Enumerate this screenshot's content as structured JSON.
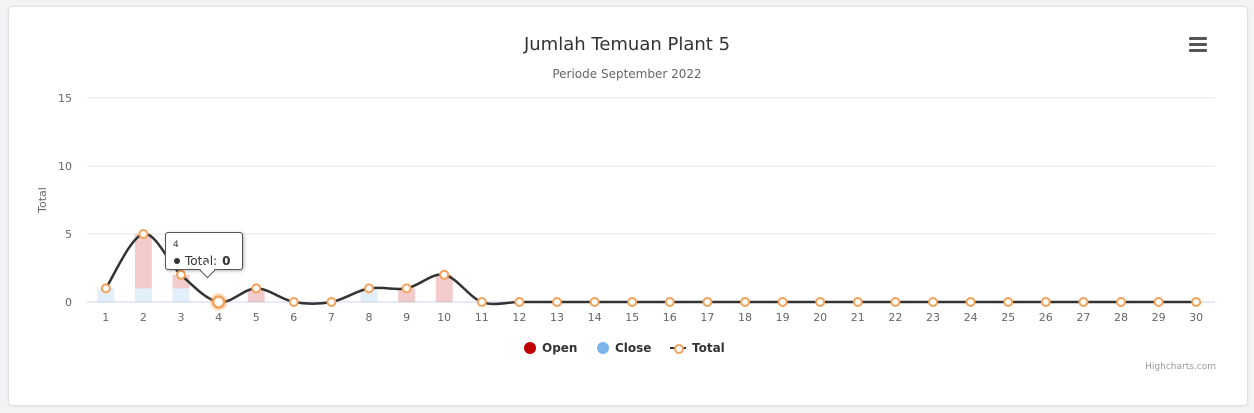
{
  "chart_data": {
    "type": "bar",
    "title": "Jumlah Temuan Plant 5",
    "subtitle": "Periode September 2022",
    "ylabel": "Total",
    "ylim": [
      0,
      15
    ],
    "yticks": [
      0,
      5,
      10,
      15
    ],
    "categories": [
      "1",
      "2",
      "3",
      "4",
      "5",
      "6",
      "7",
      "8",
      "9",
      "10",
      "11",
      "12",
      "13",
      "14",
      "15",
      "16",
      "17",
      "18",
      "19",
      "20",
      "21",
      "22",
      "23",
      "24",
      "25",
      "26",
      "27",
      "28",
      "29",
      "30"
    ],
    "series": [
      {
        "name": "Open",
        "type": "column",
        "color": "#c00000",
        "values": [
          0,
          4,
          1,
          0,
          1,
          0,
          0,
          0,
          1,
          2,
          0,
          0,
          0,
          0,
          0,
          0,
          0,
          0,
          0,
          0,
          0,
          0,
          0,
          0,
          0,
          0,
          0,
          0,
          0,
          0
        ]
      },
      {
        "name": "Close",
        "type": "column",
        "color": "#7cb5ec",
        "values": [
          1,
          1,
          1,
          0,
          0,
          0,
          0,
          1,
          0,
          0,
          0,
          0,
          0,
          0,
          0,
          0,
          0,
          0,
          0,
          0,
          0,
          0,
          0,
          0,
          0,
          0,
          0,
          0,
          0,
          0
        ]
      },
      {
        "name": "Total",
        "type": "spline",
        "color": "#333333",
        "marker_color": "#f3a25a",
        "values": [
          1,
          5,
          2,
          0,
          1,
          0,
          0,
          1,
          1,
          2,
          0,
          0,
          0,
          0,
          0,
          0,
          0,
          0,
          0,
          0,
          0,
          0,
          0,
          0,
          0,
          0,
          0,
          0,
          0,
          0
        ]
      }
    ],
    "legend_position": "bottom-center",
    "grid": true,
    "tooltip": {
      "category": "4",
      "label": "Total",
      "value": "0"
    }
  },
  "ui": {
    "menu_icon": "hamburger-menu-icon",
    "credits": "Highcharts.com"
  }
}
